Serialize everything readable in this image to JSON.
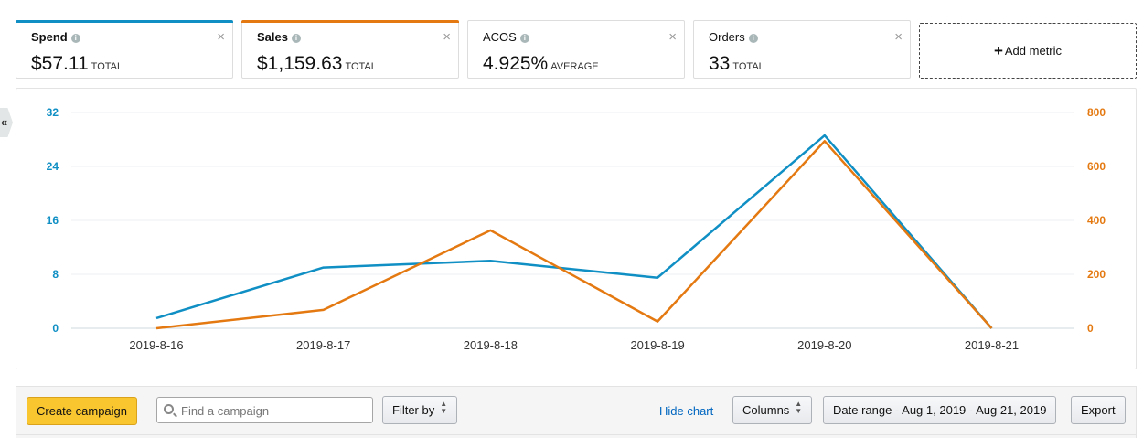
{
  "sidebar_toggle": {
    "label": "«"
  },
  "metrics": [
    {
      "title": "Spend",
      "value": "$57.11",
      "unit": "TOTAL",
      "color": "#0f8fc4",
      "selected": true
    },
    {
      "title": "Sales",
      "value": "$1,159.63",
      "unit": "TOTAL",
      "color": "#e47911",
      "selected": true
    },
    {
      "title": "ACOS",
      "value": "4.925%",
      "unit": "AVERAGE",
      "selected": false
    },
    {
      "title": "Orders",
      "value": "33",
      "unit": "TOTAL",
      "selected": false
    }
  ],
  "add_metric": {
    "label": "Add metric"
  },
  "chart_data": {
    "type": "line",
    "x": [
      "2019-8-16",
      "2019-8-17",
      "2019-8-18",
      "2019-8-19",
      "2019-8-20",
      "2019-8-21"
    ],
    "series": [
      {
        "name": "Spend",
        "axis": "left",
        "color": "#0f8fc4",
        "values": [
          1.5,
          9.0,
          10.0,
          7.5,
          28.6,
          0
        ]
      },
      {
        "name": "Sales",
        "axis": "right",
        "color": "#e47911",
        "values": [
          0,
          68,
          363,
          25,
          694,
          0
        ]
      }
    ],
    "y_left": {
      "ticks": [
        "32",
        "24",
        "16",
        "8",
        "0"
      ],
      "range": [
        0,
        32
      ],
      "color": "#0f8fc4"
    },
    "y_right": {
      "ticks": [
        "800",
        "600",
        "400",
        "200",
        "0"
      ],
      "range": [
        0,
        800
      ],
      "color": "#e47911"
    },
    "grid": true
  },
  "toolbar": {
    "create_label": "Create campaign",
    "search_placeholder": "Find a campaign",
    "filter_label": "Filter by",
    "hide_chart_label": "Hide chart",
    "columns_label": "Columns",
    "date_range_label": "Date range - Aug 1, 2019 - Aug 21, 2019",
    "export_label": "Export"
  }
}
